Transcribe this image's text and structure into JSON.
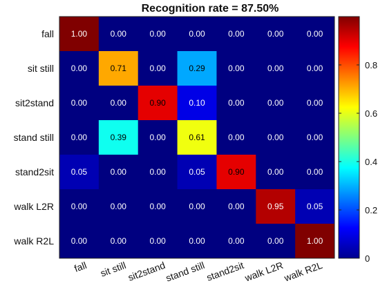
{
  "chart_data": {
    "type": "heatmap",
    "title": "Recognition rate = 87.50%",
    "rows": [
      "fall",
      "sit still",
      "sit2stand",
      "stand still",
      "stand2sit",
      "walk L2R",
      "walk R2L"
    ],
    "columns": [
      "fall",
      "sit still",
      "sit2stand",
      "stand still",
      "stand2sit",
      "walk L2R",
      "walk R2L"
    ],
    "values": [
      [
        1.0,
        0.0,
        0.0,
        0.0,
        0.0,
        0.0,
        0.0
      ],
      [
        0.0,
        0.71,
        0.0,
        0.29,
        0.0,
        0.0,
        0.0
      ],
      [
        0.0,
        0.0,
        0.9,
        0.1,
        0.0,
        0.0,
        0.0
      ],
      [
        0.0,
        0.39,
        0.0,
        0.61,
        0.0,
        0.0,
        0.0
      ],
      [
        0.05,
        0.0,
        0.0,
        0.05,
        0.9,
        0.0,
        0.0
      ],
      [
        0.0,
        0.0,
        0.0,
        0.0,
        0.0,
        0.95,
        0.05
      ],
      [
        0.0,
        0.0,
        0.0,
        0.0,
        0.0,
        0.0,
        1.0
      ]
    ],
    "value_labels": [
      [
        "1.00",
        "0.00",
        "0.00",
        "0.00",
        "0.00",
        "0.00",
        "0.00"
      ],
      [
        "0.00",
        "0.71",
        "0.00",
        "0.29",
        "0.00",
        "0.00",
        "0.00"
      ],
      [
        "0.00",
        "0.00",
        "0.90",
        "0.10",
        "0.00",
        "0.00",
        "0.00"
      ],
      [
        "0.00",
        "0.39",
        "0.00",
        "0.61",
        "0.00",
        "0.00",
        "0.00"
      ],
      [
        "0.05",
        "0.00",
        "0.00",
        "0.05",
        "0.90",
        "0.00",
        "0.00"
      ],
      [
        "0.00",
        "0.00",
        "0.00",
        "0.00",
        "0.00",
        "0.95",
        "0.05"
      ],
      [
        "0.00",
        "0.00",
        "0.00",
        "0.00",
        "0.00",
        "0.00",
        "1.00"
      ]
    ],
    "colormap": "jet",
    "colorbar": {
      "range": [
        0,
        1
      ],
      "ticks": [
        0,
        0.2,
        0.4,
        0.6,
        0.8
      ],
      "tick_labels": [
        "0",
        "0.2",
        "0.4",
        "0.6",
        "0.8"
      ]
    },
    "grid": false,
    "legend": "colorbar-right"
  }
}
